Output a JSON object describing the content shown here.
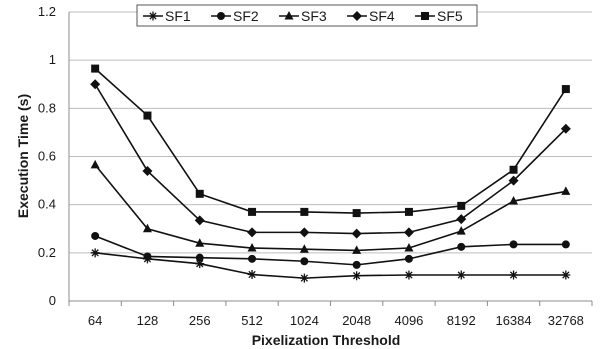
{
  "chart_data": {
    "type": "line",
    "title": "",
    "xlabel": "Pixelization Threshold",
    "ylabel": "Execution Time (s)",
    "categories": [
      "64",
      "128",
      "256",
      "512",
      "1024",
      "2048",
      "4096",
      "8192",
      "16384",
      "32768"
    ],
    "ylim": [
      0,
      1.2
    ],
    "yticks": [
      "0",
      "0.2",
      "0.4",
      "0.6",
      "0.8",
      "1",
      "1.2"
    ],
    "grid": true,
    "legend_position": "top",
    "series": [
      {
        "name": "SF1",
        "marker": "asterisk",
        "values": [
          0.2,
          0.175,
          0.155,
          0.11,
          0.095,
          0.105,
          0.108,
          0.108,
          0.108,
          0.108
        ]
      },
      {
        "name": "SF2",
        "marker": "circle",
        "values": [
          0.27,
          0.185,
          0.18,
          0.175,
          0.165,
          0.15,
          0.175,
          0.225,
          0.235,
          0.235
        ]
      },
      {
        "name": "SF3",
        "marker": "triangle",
        "values": [
          0.565,
          0.3,
          0.24,
          0.22,
          0.215,
          0.21,
          0.22,
          0.29,
          0.415,
          0.455
        ]
      },
      {
        "name": "SF4",
        "marker": "diamond",
        "values": [
          0.9,
          0.54,
          0.335,
          0.285,
          0.285,
          0.28,
          0.285,
          0.34,
          0.5,
          0.715
        ]
      },
      {
        "name": "SF5",
        "marker": "square",
        "values": [
          0.965,
          0.77,
          0.445,
          0.37,
          0.37,
          0.365,
          0.37,
          0.395,
          0.545,
          0.88
        ]
      }
    ],
    "colors": {
      "series": "#111111",
      "grid": "#bdbdbd",
      "axis": "#8c8c8c"
    }
  }
}
